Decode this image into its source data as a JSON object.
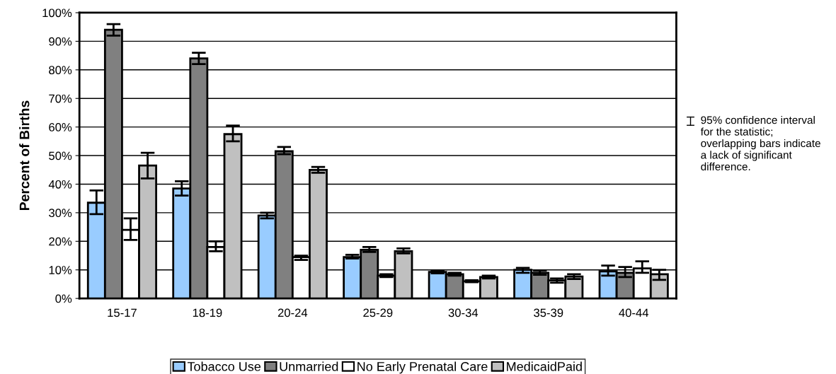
{
  "chart_data": {
    "type": "bar",
    "ylabel": "Percent of Births",
    "categories": [
      "15-17",
      "18-19",
      "20-24",
      "25-29",
      "30-34",
      "35-39",
      "40-44"
    ],
    "series": [
      {
        "name": "Tobacco Use",
        "color": "#99ccff",
        "values": [
          33.5,
          38.5,
          29,
          14.5,
          9.3,
          10,
          9.5
        ],
        "errors": [
          [
            29.5,
            37.8
          ],
          [
            36,
            41
          ],
          [
            28,
            30
          ],
          [
            14,
            15.3
          ],
          [
            8.8,
            9.7
          ],
          [
            9,
            10.7
          ],
          [
            8,
            11.5
          ]
        ]
      },
      {
        "name": "Unmarried",
        "color": "#808080",
        "values": [
          94,
          84,
          51.5,
          17,
          8.5,
          9,
          9
        ],
        "errors": [
          [
            92,
            96
          ],
          [
            82,
            86
          ],
          [
            50.5,
            53
          ],
          [
            16.3,
            18
          ],
          [
            8,
            9
          ],
          [
            8.3,
            9.7
          ],
          [
            7.5,
            11
          ]
        ]
      },
      {
        "name": "No Early Prenatal Care",
        "color": "#ffffff",
        "values": [
          24,
          18,
          14.5,
          8,
          6,
          6.3,
          10.5
        ],
        "errors": [
          [
            20.5,
            28
          ],
          [
            16.5,
            20
          ],
          [
            13.5,
            15
          ],
          [
            7.5,
            8.5
          ],
          [
            5.7,
            6.4
          ],
          [
            5.5,
            7
          ],
          [
            9,
            13
          ]
        ]
      },
      {
        "name": "MedicaidPaid",
        "color": "#c0c0c0",
        "values": [
          46.5,
          57.5,
          45,
          16.5,
          7.5,
          7.7,
          8.5
        ],
        "errors": [
          [
            42,
            51
          ],
          [
            55,
            60.5
          ],
          [
            44,
            46
          ],
          [
            15.8,
            17.5
          ],
          [
            7,
            8
          ],
          [
            6.8,
            8.5
          ],
          [
            6.5,
            10
          ]
        ]
      }
    ],
    "ylim": [
      0,
      100
    ],
    "yticks": [
      {
        "value": 0,
        "label": "0%"
      },
      {
        "value": 10,
        "label": "10%"
      },
      {
        "value": 20,
        "label": "20%"
      },
      {
        "value": 30,
        "label": "30%"
      },
      {
        "value": 40,
        "label": "40%"
      },
      {
        "value": 50,
        "label": "50%"
      },
      {
        "value": 60,
        "label": "60%"
      },
      {
        "value": 70,
        "label": "70%"
      },
      {
        "value": 80,
        "label": "80%"
      },
      {
        "value": 90,
        "label": "90%"
      },
      {
        "value": 100,
        "label": "100%"
      }
    ],
    "grid": "y",
    "legend": "bottom",
    "annotations": [
      "95% confidence interval for the statistic; overlapping bars indicate a lack of significant difference."
    ]
  }
}
